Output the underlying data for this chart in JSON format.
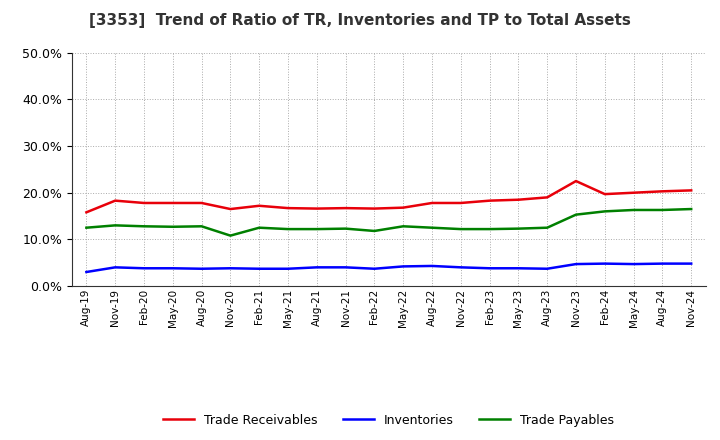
{
  "title": "[3353]  Trend of Ratio of TR, Inventories and TP to Total Assets",
  "x_labels": [
    "Aug-19",
    "Nov-19",
    "Feb-20",
    "May-20",
    "Aug-20",
    "Nov-20",
    "Feb-21",
    "May-21",
    "Aug-21",
    "Nov-21",
    "Feb-22",
    "May-22",
    "Aug-22",
    "Nov-22",
    "Feb-23",
    "May-23",
    "Aug-23",
    "Nov-23",
    "Feb-24",
    "May-24",
    "Aug-24",
    "Nov-24"
  ],
  "trade_receivables": [
    0.158,
    0.183,
    0.178,
    0.178,
    0.178,
    0.165,
    0.172,
    0.167,
    0.166,
    0.167,
    0.166,
    0.168,
    0.178,
    0.178,
    0.183,
    0.185,
    0.19,
    0.225,
    0.197,
    0.2,
    0.203,
    0.205
  ],
  "inventories": [
    0.03,
    0.04,
    0.038,
    0.038,
    0.037,
    0.038,
    0.037,
    0.037,
    0.04,
    0.04,
    0.037,
    0.042,
    0.043,
    0.04,
    0.038,
    0.038,
    0.037,
    0.047,
    0.048,
    0.047,
    0.048,
    0.048
  ],
  "trade_payables": [
    0.125,
    0.13,
    0.128,
    0.127,
    0.128,
    0.108,
    0.125,
    0.122,
    0.122,
    0.123,
    0.118,
    0.128,
    0.125,
    0.122,
    0.122,
    0.123,
    0.125,
    0.153,
    0.16,
    0.163,
    0.163,
    0.165
  ],
  "tr_color": "#e8000a",
  "inv_color": "#0000ff",
  "tp_color": "#008000",
  "ylim": [
    0.0,
    0.5
  ],
  "yticks": [
    0.0,
    0.1,
    0.2,
    0.3,
    0.4,
    0.5
  ],
  "background_color": "#ffffff",
  "grid_color": "#aaaaaa",
  "legend_labels": [
    "Trade Receivables",
    "Inventories",
    "Trade Payables"
  ]
}
